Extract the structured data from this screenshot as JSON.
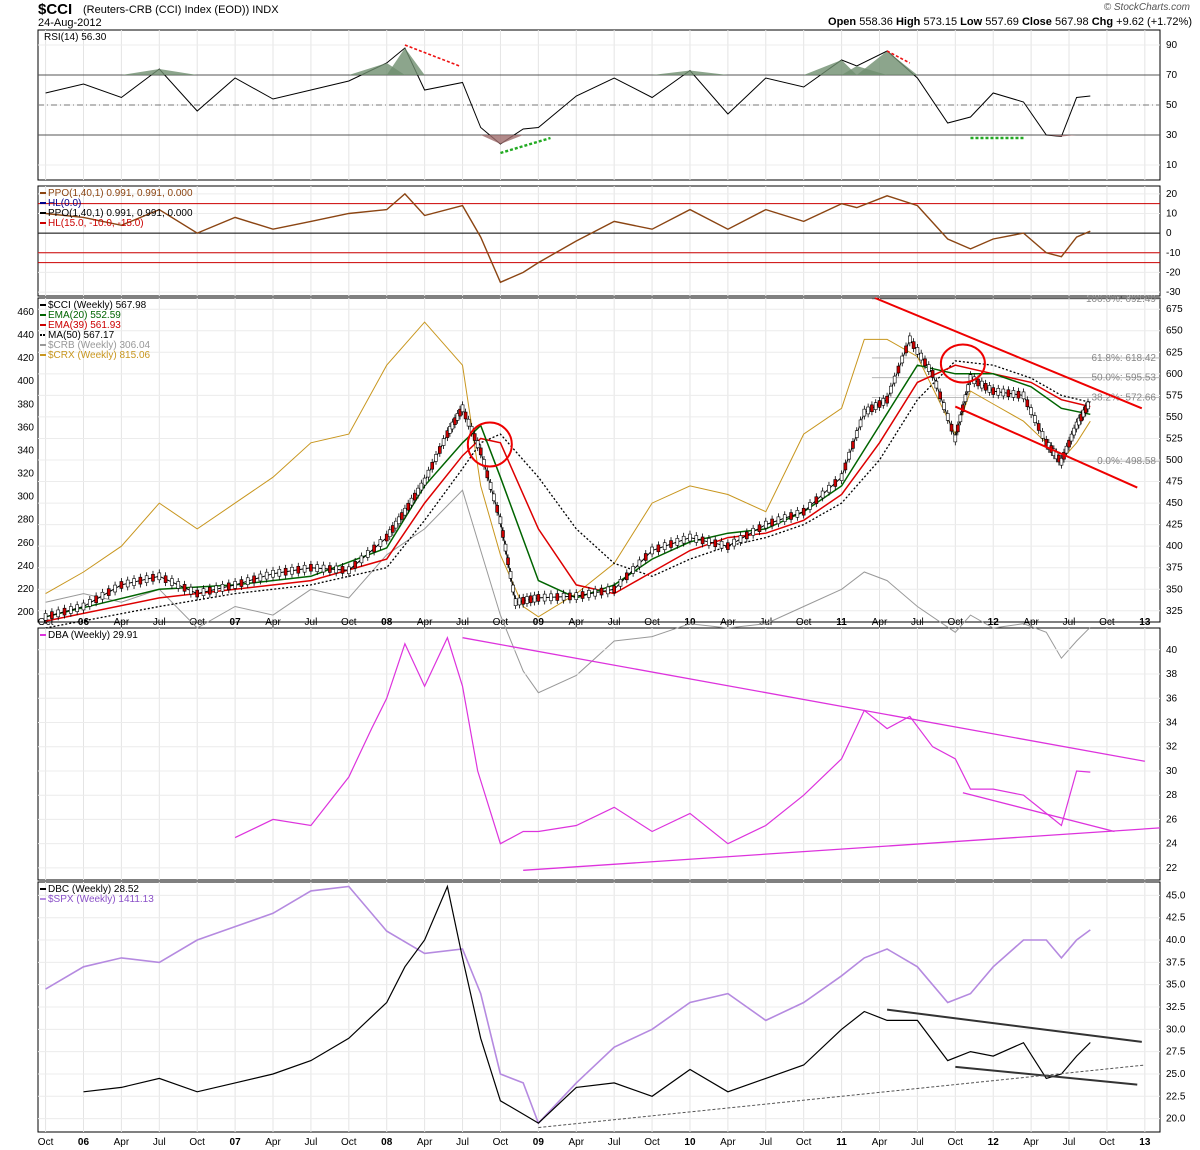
{
  "header": {
    "symbol": "$CCI",
    "name": "(Reuters-CRB (CCI) Index (EOD))  INDX",
    "date": "24-Aug-2012",
    "watermark": "© StockCharts.com",
    "ohlc": {
      "open_label": "Open",
      "open": "558.36",
      "high_label": "High",
      "high": "573.15",
      "low_label": "Low",
      "low": "557.69",
      "close_label": "Close",
      "close": "567.98",
      "chg_label": "Chg",
      "chg": "+9.62 (+1.72%)"
    }
  },
  "chart_data": [
    {
      "type": "line",
      "panel": "rsi",
      "legend": [
        "RSI(14) 56.30"
      ],
      "y_ticks": [
        90,
        70,
        50,
        30,
        10
      ],
      "ylim": [
        0,
        100
      ],
      "levels": [
        70,
        50,
        30
      ],
      "series": [
        {
          "name": "RSI(14)",
          "color": "#000000",
          "x": [
            2005.75,
            2006.0,
            2006.25,
            2006.5,
            2006.75,
            2007.0,
            2007.25,
            2007.5,
            2007.75,
            2008.0,
            2008.12,
            2008.25,
            2008.5,
            2008.62,
            2008.75,
            2008.9,
            2009.0,
            2009.25,
            2009.5,
            2009.75,
            2010.0,
            2010.25,
            2010.5,
            2010.75,
            2011.0,
            2011.1,
            2011.3,
            2011.5,
            2011.7,
            2011.85,
            2012.0,
            2012.2,
            2012.35,
            2012.45,
            2012.55,
            2012.64
          ],
          "values": [
            58,
            64,
            55,
            74,
            46,
            68,
            54,
            60,
            66,
            78,
            88,
            60,
            65,
            35,
            24,
            34,
            35,
            56,
            68,
            55,
            73,
            44,
            68,
            62,
            80,
            76,
            86,
            68,
            38,
            42,
            58,
            52,
            30,
            29,
            55,
            56
          ]
        }
      ],
      "annotations": [
        "divergence-line",
        "divergence-line",
        "divergence-line",
        "divergence-line"
      ]
    },
    {
      "type": "line",
      "panel": "ppo",
      "legend": [
        "PPO(1,40,1) 0.991, 0.991, 0.000",
        "HL(0.0)",
        "PPO(1,40,1) 0.991, 0.991, 0.000",
        "HL(15.0, -10.0, -15.0)"
      ],
      "y_ticks": [
        20,
        10,
        0,
        -10,
        -20,
        -30
      ],
      "ylim": [
        -32,
        24
      ],
      "levels": [
        15,
        0,
        -10,
        -15
      ],
      "series": [
        {
          "name": "PPO(1,40,1)",
          "color": "#8b4513",
          "x": [
            2005.75,
            2006.0,
            2006.25,
            2006.5,
            2006.75,
            2007.0,
            2007.25,
            2007.5,
            2007.75,
            2008.0,
            2008.12,
            2008.25,
            2008.5,
            2008.62,
            2008.75,
            2008.9,
            2009.0,
            2009.25,
            2009.5,
            2009.75,
            2010.0,
            2010.25,
            2010.5,
            2010.75,
            2011.0,
            2011.1,
            2011.3,
            2011.5,
            2011.7,
            2011.85,
            2012.0,
            2012.2,
            2012.35,
            2012.45,
            2012.55,
            2012.64
          ],
          "values": [
            10,
            8,
            4,
            12,
            0,
            8,
            2,
            6,
            10,
            12,
            20,
            9,
            14,
            -2,
            -25,
            -20,
            -15,
            -4,
            6,
            2,
            12,
            2,
            12,
            6,
            15,
            13,
            19,
            14,
            -3,
            -8,
            -3,
            0,
            -10,
            -12,
            -2,
            1
          ]
        }
      ]
    },
    {
      "type": "line",
      "panel": "cci",
      "legend": [
        "$CCI (Weekly) 567.98",
        "EMA(20) 552.59",
        "EMA(39) 561.93",
        "MA(50) 567.17",
        "$CRB (Weekly) 306.04",
        "$CRX (Weekly) 815.06"
      ],
      "y_ticks_left": [
        460,
        440,
        420,
        400,
        380,
        360,
        340,
        320,
        300,
        280,
        260,
        240,
        220,
        200
      ],
      "y_ticks_right": [
        675,
        650,
        625,
        600,
        575,
        550,
        525,
        500,
        475,
        450,
        425,
        400,
        375,
        350,
        325
      ],
      "ylim_right": [
        312,
        688
      ],
      "fib_labels": [
        "100.0%: 692.49",
        "61.8%: 618.42",
        "50.0%: 595.53",
        "38.2%: 572.66",
        "0.0%: 498.58"
      ],
      "fib_levels": [
        692.49,
        618.42,
        595.53,
        572.66,
        498.58
      ],
      "series": [
        {
          "name": "$CCI (Weekly)",
          "color": "#000000",
          "x": [
            2005.75,
            2006.0,
            2006.25,
            2006.5,
            2006.75,
            2007.0,
            2007.25,
            2007.5,
            2007.75,
            2008.0,
            2008.12,
            2008.25,
            2008.4,
            2008.5,
            2008.62,
            2008.75,
            2008.85,
            2009.0,
            2009.25,
            2009.5,
            2009.75,
            2010.0,
            2010.25,
            2010.5,
            2010.75,
            2011.0,
            2011.15,
            2011.3,
            2011.45,
            2011.6,
            2011.75,
            2011.85,
            2012.0,
            2012.2,
            2012.35,
            2012.45,
            2012.55,
            2012.64
          ],
          "values": [
            318,
            330,
            355,
            365,
            345,
            355,
            368,
            375,
            372,
            410,
            440,
            475,
            530,
            560,
            510,
            430,
            335,
            340,
            342,
            350,
            395,
            410,
            400,
            425,
            440,
            480,
            555,
            570,
            640,
            600,
            525,
            595,
            580,
            575,
            520,
            498,
            540,
            568
          ]
        },
        {
          "name": "EMA(20)",
          "color": "#006400",
          "x": [
            2005.75,
            2006.5,
            2007.0,
            2007.5,
            2008.0,
            2008.25,
            2008.5,
            2008.62,
            2008.75,
            2009.0,
            2009.25,
            2009.5,
            2009.75,
            2010.0,
            2010.25,
            2010.5,
            2010.75,
            2011.0,
            2011.25,
            2011.5,
            2011.75,
            2012.0,
            2012.25,
            2012.45,
            2012.64
          ],
          "values": [
            318,
            350,
            355,
            365,
            398,
            470,
            520,
            540,
            480,
            360,
            340,
            355,
            385,
            405,
            415,
            420,
            440,
            470,
            540,
            610,
            600,
            600,
            585,
            560,
            553
          ]
        },
        {
          "name": "EMA(39)",
          "color": "#dd0000",
          "x": [
            2005.75,
            2006.5,
            2007.0,
            2007.5,
            2008.0,
            2008.25,
            2008.5,
            2008.62,
            2008.75,
            2009.0,
            2009.25,
            2009.5,
            2009.75,
            2010.0,
            2010.25,
            2010.5,
            2010.75,
            2011.0,
            2011.25,
            2011.5,
            2011.75,
            2012.0,
            2012.25,
            2012.45,
            2012.64
          ],
          "values": [
            313,
            340,
            350,
            360,
            385,
            450,
            505,
            525,
            520,
            420,
            355,
            345,
            370,
            395,
            410,
            415,
            430,
            460,
            520,
            590,
            610,
            600,
            590,
            570,
            562
          ]
        },
        {
          "name": "MA(50)",
          "color": "#000000",
          "x": [
            2005.75,
            2006.5,
            2007.0,
            2007.5,
            2008.0,
            2008.25,
            2008.5,
            2008.62,
            2008.75,
            2009.0,
            2009.25,
            2009.5,
            2009.75,
            2010.0,
            2010.25,
            2010.5,
            2010.75,
            2011.0,
            2011.25,
            2011.5,
            2011.75,
            2012.0,
            2012.25,
            2012.45,
            2012.64
          ],
          "values": [
            305,
            330,
            345,
            355,
            375,
            430,
            490,
            520,
            530,
            480,
            420,
            380,
            365,
            385,
            400,
            410,
            425,
            450,
            500,
            570,
            615,
            610,
            595,
            575,
            567
          ]
        },
        {
          "name": "$CRB (Weekly)",
          "color": "#999999",
          "x": [
            2005.75,
            2006.0,
            2006.25,
            2006.5,
            2006.75,
            2007.0,
            2007.25,
            2007.5,
            2007.75,
            2008.0,
            2008.25,
            2008.5,
            2008.62,
            2008.75,
            2008.9,
            2009.0,
            2009.25,
            2009.5,
            2009.75,
            2010.0,
            2010.25,
            2010.5,
            2010.75,
            2011.0,
            2011.15,
            2011.3,
            2011.5,
            2011.75,
            2011.85,
            2012.0,
            2012.2,
            2012.35,
            2012.45,
            2012.55,
            2012.64
          ],
          "values": [
            335,
            345,
            335,
            350,
            305,
            330,
            320,
            350,
            340,
            390,
            420,
            465,
            395,
            320,
            255,
            230,
            250,
            290,
            295,
            310,
            305,
            310,
            330,
            350,
            370,
            360,
            330,
            300,
            320,
            305,
            310,
            300,
            270,
            290,
            306
          ]
        },
        {
          "name": "$CRX (Weekly)",
          "color": "#c8961e",
          "x": [
            2005.75,
            2006.0,
            2006.25,
            2006.5,
            2006.75,
            2007.0,
            2007.25,
            2007.5,
            2007.75,
            2008.0,
            2008.25,
            2008.5,
            2008.62,
            2008.75,
            2008.9,
            2009.0,
            2009.25,
            2009.5,
            2009.75,
            2010.0,
            2010.25,
            2010.5,
            2010.75,
            2011.0,
            2011.15,
            2011.3,
            2011.5,
            2011.75,
            2011.85,
            2012.0,
            2012.2,
            2012.35,
            2012.45,
            2012.55,
            2012.64
          ],
          "values": [
            345,
            370,
            400,
            450,
            420,
            450,
            480,
            520,
            530,
            610,
            660,
            610,
            470,
            390,
            330,
            318,
            345,
            380,
            450,
            470,
            460,
            440,
            530,
            560,
            640,
            640,
            620,
            530,
            580,
            565,
            545,
            520,
            500,
            520,
            545
          ]
        }
      ],
      "annotations": [
        "falling-channel",
        "ellipse-2008",
        "ellipse-2011"
      ]
    },
    {
      "type": "line",
      "panel": "dba",
      "legend": [
        "DBA (Weekly) 29.91"
      ],
      "y_ticks": [
        40,
        38,
        36,
        34,
        32,
        30,
        28,
        26,
        24,
        22
      ],
      "ylim": [
        21,
        41.8
      ],
      "series": [
        {
          "name": "DBA (Weekly)",
          "color": "#dd33dd",
          "x": [
            2007.0,
            2007.25,
            2007.5,
            2007.75,
            2007.9,
            2008.0,
            2008.12,
            2008.25,
            2008.4,
            2008.5,
            2008.6,
            2008.75,
            2008.9,
            2009.0,
            2009.25,
            2009.5,
            2009.75,
            2010.0,
            2010.25,
            2010.5,
            2010.75,
            2011.0,
            2011.15,
            2011.3,
            2011.45,
            2011.6,
            2011.75,
            2011.85,
            2012.0,
            2012.2,
            2012.35,
            2012.45,
            2012.55,
            2012.64
          ],
          "values": [
            24.5,
            26,
            25.5,
            29.5,
            33.5,
            36,
            40.5,
            37,
            41,
            37,
            30,
            24,
            25,
            25,
            25.5,
            27,
            25,
            26.5,
            24,
            25.5,
            28,
            31,
            35,
            33.5,
            34.5,
            32,
            31,
            28.5,
            28.5,
            28,
            26.5,
            25.5,
            30,
            29.91
          ]
        }
      ],
      "annotations": [
        "trendline",
        "trendline",
        "trendline"
      ]
    },
    {
      "type": "line",
      "panel": "dbc",
      "legend": [
        "DBC (Weekly) 28.52",
        "$SPX (Weekly) 1411.13"
      ],
      "y_ticks": [
        45.0,
        42.5,
        40.0,
        37.5,
        35.0,
        32.5,
        30.0,
        27.5,
        25.0,
        22.5,
        20.0
      ],
      "ylim": [
        18.5,
        46.5
      ],
      "series": [
        {
          "name": "DBC (Weekly)",
          "color": "#000000",
          "x": [
            2006.0,
            2006.25,
            2006.5,
            2006.75,
            2007.0,
            2007.25,
            2007.5,
            2007.75,
            2008.0,
            2008.12,
            2008.25,
            2008.4,
            2008.5,
            2008.62,
            2008.75,
            2008.9,
            2009.0,
            2009.25,
            2009.5,
            2009.75,
            2010.0,
            2010.25,
            2010.5,
            2010.75,
            2011.0,
            2011.15,
            2011.3,
            2011.5,
            2011.7,
            2011.85,
            2012.0,
            2012.2,
            2012.35,
            2012.45,
            2012.55,
            2012.64
          ],
          "values": [
            23,
            23.5,
            24.5,
            23,
            24,
            25,
            26.5,
            29,
            33,
            37,
            40,
            46,
            38,
            29,
            22,
            20.5,
            19.5,
            23.5,
            24,
            22.5,
            25.5,
            23,
            24.5,
            26,
            30,
            32,
            31,
            31,
            26.5,
            27.5,
            27,
            28.5,
            24.5,
            25,
            27,
            28.52
          ]
        },
        {
          "name": "$SPX (Weekly)",
          "color": "#b58ae0",
          "x": [
            2005.75,
            2006.0,
            2006.25,
            2006.5,
            2006.75,
            2007.0,
            2007.25,
            2007.5,
            2007.75,
            2008.0,
            2008.25,
            2008.5,
            2008.62,
            2008.75,
            2008.9,
            2009.0,
            2009.25,
            2009.5,
            2009.75,
            2010.0,
            2010.25,
            2010.5,
            2010.75,
            2011.0,
            2011.15,
            2011.3,
            2011.5,
            2011.7,
            2011.85,
            2012.0,
            2012.2,
            2012.35,
            2012.45,
            2012.55,
            2012.64
          ],
          "values": [
            34.5,
            37,
            38,
            37.5,
            40,
            41.5,
            43,
            45.5,
            46,
            41,
            38.5,
            39,
            34,
            25,
            24,
            19.5,
            24,
            28,
            30,
            33,
            34,
            31,
            33,
            36,
            38,
            39,
            37,
            33,
            34,
            37,
            40,
            40,
            38,
            40,
            41.13
          ]
        }
      ],
      "annotations": [
        "channel",
        "channel",
        "dashed-support"
      ]
    }
  ],
  "x_axis": {
    "labels": [
      "Oct",
      "06",
      "Apr",
      "Jul",
      "Oct",
      "07",
      "Apr",
      "Jul",
      "Oct",
      "08",
      "Apr",
      "Jul",
      "Oct",
      "09",
      "Apr",
      "Jul",
      "Oct",
      "10",
      "Apr",
      "Jul",
      "Oct",
      "11",
      "Apr",
      "Jul",
      "Oct",
      "12",
      "Apr",
      "Jul",
      "Oct",
      "13"
    ],
    "values": [
      2005.75,
      2006.0,
      2006.25,
      2006.5,
      2006.75,
      2007.0,
      2007.25,
      2007.5,
      2007.75,
      2008.0,
      2008.25,
      2008.5,
      2008.75,
      2009.0,
      2009.25,
      2009.5,
      2009.75,
      2010.0,
      2010.25,
      2010.5,
      2010.75,
      2011.0,
      2011.25,
      2011.5,
      2011.75,
      2012.0,
      2012.25,
      2012.5,
      2012.75,
      2013.0
    ]
  }
}
